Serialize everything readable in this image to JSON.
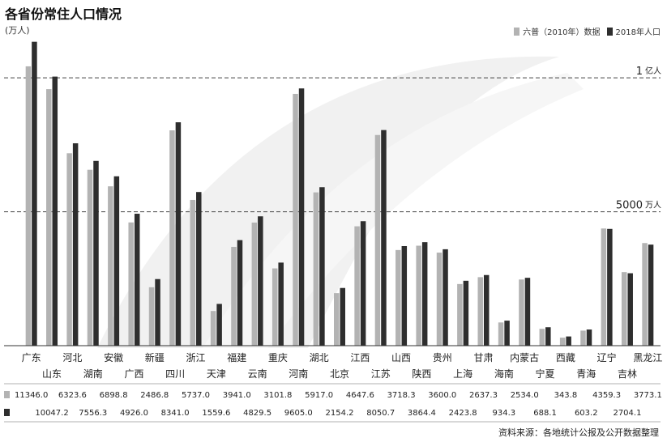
{
  "title": "各省份常住人口情况",
  "unit_label": "(万人)",
  "legend": {
    "items": [
      {
        "label": "六普（2010年）数据",
        "color": "#b3b3b3"
      },
      {
        "label": "2018年人口",
        "color": "#2e2e2e"
      }
    ]
  },
  "source": "资料来源：各地统计公报及公开数据整理",
  "chart_data": {
    "type": "bar",
    "categories": [
      "广东",
      "山东",
      "河北",
      "湖南",
      "安徽",
      "广西",
      "新疆",
      "四川",
      "浙江",
      "天津",
      "福建",
      "云南",
      "重庆",
      "河南",
      "湖北",
      "北京",
      "江西",
      "江苏",
      "山西",
      "陕西",
      "贵州",
      "上海",
      "甘肃",
      "海南",
      "内蒙古",
      "宁夏",
      "西藏",
      "青海",
      "辽宁",
      "吉林",
      "黑龙江"
    ],
    "series": [
      {
        "name": "六普（2010年）数据",
        "values": [
          10430,
          9579,
          7185,
          6568,
          5950,
          4602,
          2181,
          8041,
          5442,
          1294,
          3689,
          4597,
          2885,
          9402,
          5724,
          1961,
          4457,
          7866,
          3571,
          3733,
          3475,
          2302,
          2558,
          867,
          2471,
          630,
          300,
          563,
          4375,
          2746,
          3831
        ]
      },
      {
        "name": "2018年人口",
        "values": [
          11346.0,
          10047.2,
          7556.3,
          6898.8,
          6323.6,
          4926.0,
          2486.8,
          8341.0,
          5737.0,
          1559.6,
          3941.0,
          4829.5,
          3101.8,
          9605.0,
          5917.0,
          2154.2,
          4647.6,
          8050.7,
          3718.3,
          3864.4,
          3600.0,
          2423.8,
          2637.3,
          934.3,
          2534.0,
          688.1,
          343.8,
          603.2,
          4359.3,
          2704.1,
          3773.1
        ]
      }
    ],
    "value_rows": {
      "top": [
        "11346.0",
        "6323.6",
        "6898.8",
        "2486.8",
        "5737.0",
        "3941.0",
        "3101.8",
        "5917.0",
        "4647.6",
        "3718.3",
        "3600.0",
        "2637.3",
        "2534.0",
        "343.8",
        "4359.3",
        "3773.1"
      ],
      "bottom": [
        "10047.2",
        "7556.3",
        "4926.0",
        "8341.0",
        "1559.6",
        "4829.5",
        "9605.0",
        "2154.2",
        "8050.7",
        "3864.4",
        "2423.8",
        "934.3",
        "688.1",
        "603.2",
        "2704.1"
      ]
    },
    "reference_lines": [
      {
        "value": 10000,
        "label": "1",
        "unit": "亿人"
      },
      {
        "value": 5000,
        "label": "5000",
        "unit": "万人"
      }
    ],
    "ylim": [
      0,
      12000
    ],
    "grid": false,
    "legend_position": "top-right"
  }
}
